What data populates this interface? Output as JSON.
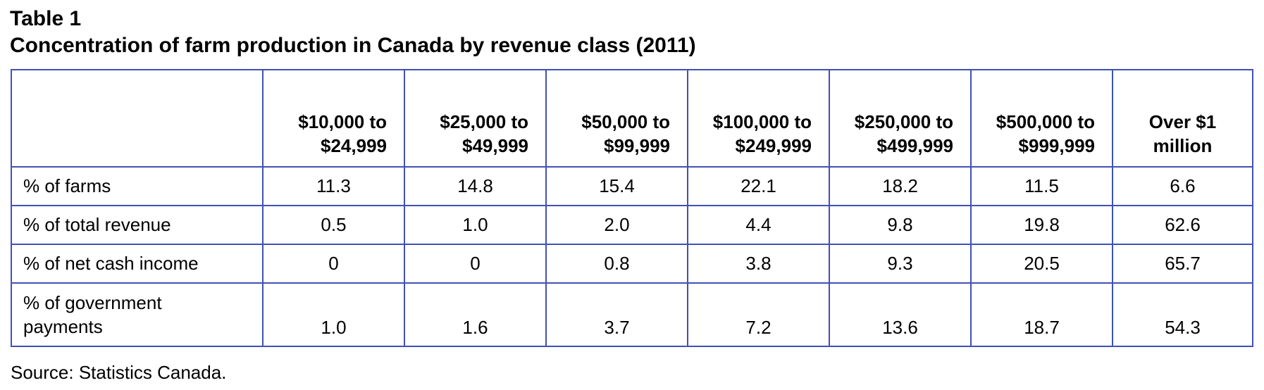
{
  "title": {
    "line1": "Table 1",
    "line2": "Concentration of farm production in Canada by revenue class (2011)"
  },
  "table": {
    "headers": [
      "",
      "$10,000 to $24,999",
      "$25,000 to $49,999",
      "$50,000 to $99,999",
      "$100,000 to $249,999",
      "$250,000 to $499,999",
      "$500,000 to $999,999",
      "Over $1 million"
    ],
    "header_lines": [
      [
        "",
        ""
      ],
      [
        "$10,000 to",
        "$24,999"
      ],
      [
        "$25,000 to",
        "$49,999"
      ],
      [
        "$50,000 to",
        "$99,999"
      ],
      [
        "$100,000 to",
        "$249,999"
      ],
      [
        "$250,000 to",
        "$499,999"
      ],
      [
        "$500,000 to",
        "$999,999"
      ],
      [
        "Over $1",
        "million"
      ]
    ],
    "rows": [
      {
        "label": "% of farms",
        "values": [
          "11.3",
          "14.8",
          "15.4",
          "22.1",
          "18.2",
          "11.5",
          "6.6"
        ]
      },
      {
        "label": "% of total revenue",
        "values": [
          "0.5",
          "1.0",
          "2.0",
          "4.4",
          "9.8",
          "19.8",
          "62.6"
        ]
      },
      {
        "label": "% of net cash income",
        "values": [
          "0",
          "0",
          "0.8",
          "3.8",
          "9.3",
          "20.5",
          "65.7"
        ]
      },
      {
        "label": "% of government payments",
        "label_lines": [
          "% of government",
          "payments"
        ],
        "values": [
          "1.0",
          "1.6",
          "3.7",
          "7.2",
          "13.6",
          "18.7",
          "54.3"
        ]
      }
    ]
  },
  "source": "Source: Statistics Canada."
}
